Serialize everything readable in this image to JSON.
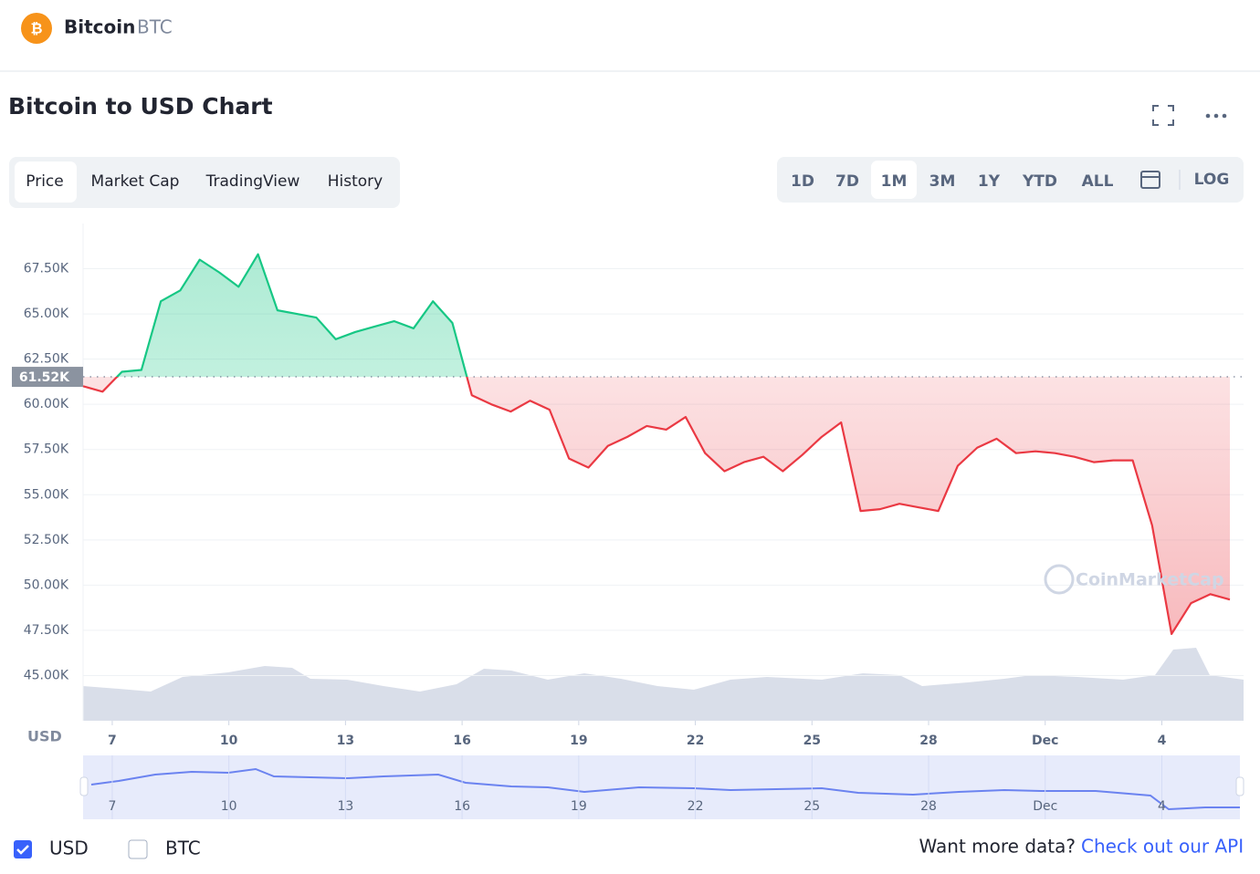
{
  "header": {
    "name": "Bitcoin",
    "symbol": "BTC"
  },
  "section_title": "Bitcoin to USD Chart",
  "tabs": [
    "Price",
    "Market Cap",
    "TradingView",
    "History"
  ],
  "ranges": [
    "1D",
    "7D",
    "1M",
    "3M",
    "1Y",
    "YTD",
    "ALL"
  ],
  "log_button": "LOG",
  "watermark": "CoinMarketCap",
  "currencies": [
    "USD",
    "BTC"
  ],
  "footer": {
    "text": "Want more data?",
    "link": "Check out our API"
  },
  "chart_data": {
    "type": "line",
    "ylabel": "USD",
    "values": [
      61000,
      60700,
      61800,
      61900,
      65700,
      66300,
      68000,
      67300,
      66500,
      68300,
      65200,
      65000,
      64800,
      63600,
      64000,
      64300,
      64600,
      64200,
      65700,
      64500,
      60500,
      60000,
      59600,
      60200,
      59700,
      57000,
      56500,
      57700,
      58200,
      58800,
      58600,
      59300,
      57300,
      56300,
      56800,
      57100,
      56300,
      57200,
      58200,
      59000,
      54100,
      54200,
      54500,
      54300,
      54100,
      56600,
      57600,
      58100,
      57300,
      57400,
      57300,
      57100,
      56800,
      56900,
      56900,
      53300,
      47300,
      49000,
      49500,
      49200
    ],
    "xlim": [
      0,
      59
    ],
    "xticks": [
      {
        "value": 1.5,
        "label": "7"
      },
      {
        "value": 7.5,
        "label": "10"
      },
      {
        "value": 13.5,
        "label": "13"
      },
      {
        "value": 19.5,
        "label": "16"
      },
      {
        "value": 25.5,
        "label": "19"
      },
      {
        "value": 31.5,
        "label": "22"
      },
      {
        "value": 37.5,
        "label": "25"
      },
      {
        "value": 43.5,
        "label": "28"
      },
      {
        "value": 49.5,
        "label": "Dec"
      },
      {
        "value": 55.5,
        "label": "4"
      }
    ],
    "ylim": [
      42500,
      70000
    ],
    "yticks": [
      {
        "value": 45000,
        "label": "45.00K"
      },
      {
        "value": 47500,
        "label": "47.50K"
      },
      {
        "value": 50000,
        "label": "50.00K"
      },
      {
        "value": 52500,
        "label": "52.50K"
      },
      {
        "value": 55000,
        "label": "55.00K"
      },
      {
        "value": 57500,
        "label": "57.50K"
      },
      {
        "value": 60000,
        "label": "60.00K"
      },
      {
        "value": 62500,
        "label": "62.50K"
      },
      {
        "value": 65000,
        "label": "65.00K"
      },
      {
        "value": 67500,
        "label": "67.50K"
      }
    ],
    "reference": {
      "value": 61520,
      "label": "61.52K"
    },
    "color_up": "#16c784",
    "color_down": "#ea3943",
    "grid": true
  }
}
